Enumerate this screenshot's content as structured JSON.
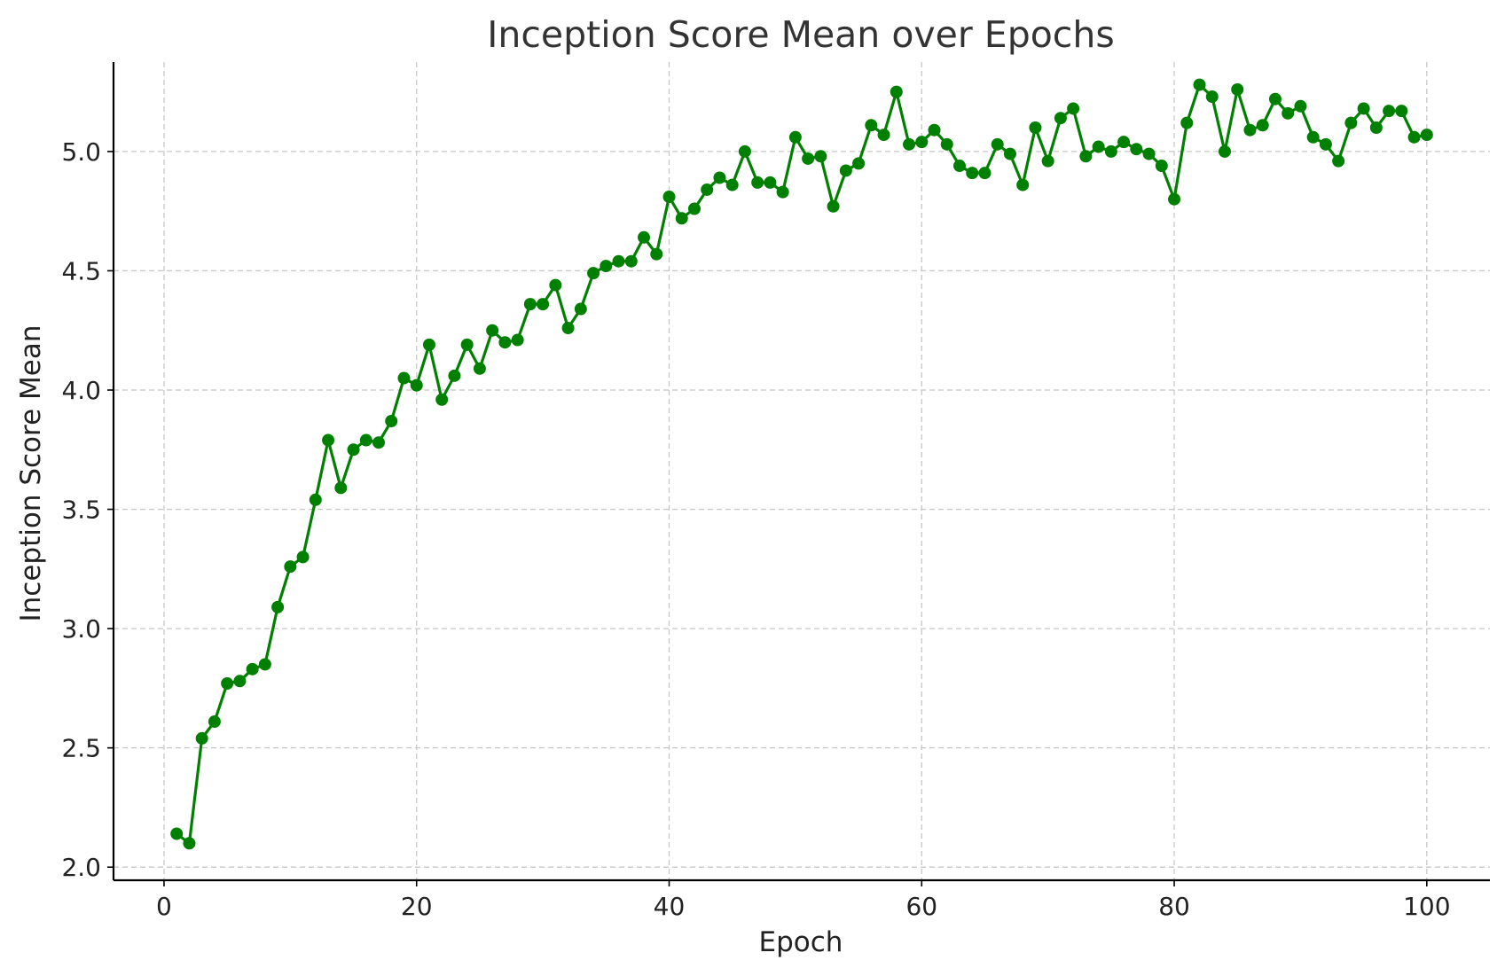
{
  "chart_data": {
    "type": "line",
    "title": "Inception Score Mean over Epochs",
    "xlabel": "Epoch",
    "ylabel": "Inception Score Mean",
    "xlim": [
      -4,
      105
    ],
    "ylim": [
      1.945,
      5.375
    ],
    "x_ticks": [
      0,
      20,
      40,
      60,
      80,
      100
    ],
    "y_ticks": [
      2.0,
      2.5,
      3.0,
      3.5,
      4.0,
      4.5,
      5.0
    ],
    "x_tick_labels": [
      "0",
      "20",
      "40",
      "60",
      "80",
      "100"
    ],
    "y_tick_labels": [
      "2.0",
      "2.5",
      "3.0",
      "3.5",
      "4.0",
      "4.5",
      "5.0"
    ],
    "grid": true,
    "series": [
      {
        "color": "#008000",
        "marker": "circle",
        "x": [
          1,
          2,
          3,
          4,
          5,
          6,
          7,
          8,
          9,
          10,
          11,
          12,
          13,
          14,
          15,
          16,
          17,
          18,
          19,
          20,
          21,
          22,
          23,
          24,
          25,
          26,
          27,
          28,
          29,
          30,
          31,
          32,
          33,
          34,
          35,
          36,
          37,
          38,
          39,
          40,
          41,
          42,
          43,
          44,
          45,
          46,
          47,
          48,
          49,
          50,
          51,
          52,
          53,
          54,
          55,
          56,
          57,
          58,
          59,
          60,
          61,
          62,
          63,
          64,
          65,
          66,
          67,
          68,
          69,
          70,
          71,
          72,
          73,
          74,
          75,
          76,
          77,
          78,
          79,
          80,
          81,
          82,
          83,
          84,
          85,
          86,
          87,
          88,
          89,
          90,
          91,
          92,
          93,
          94,
          95,
          96,
          97,
          98,
          99,
          100
        ],
        "values": [
          2.14,
          2.1,
          2.54,
          2.61,
          2.77,
          2.78,
          2.83,
          2.85,
          3.09,
          3.26,
          3.3,
          3.54,
          3.79,
          3.59,
          3.75,
          3.79,
          3.78,
          3.87,
          4.05,
          4.02,
          4.19,
          3.96,
          4.06,
          4.19,
          4.09,
          4.25,
          4.2,
          4.21,
          4.36,
          4.36,
          4.44,
          4.26,
          4.34,
          4.49,
          4.52,
          4.54,
          4.54,
          4.64,
          4.57,
          4.81,
          4.72,
          4.76,
          4.84,
          4.89,
          4.86,
          5.0,
          4.87,
          4.87,
          4.83,
          5.06,
          4.97,
          4.98,
          4.77,
          4.92,
          4.95,
          5.11,
          5.07,
          5.25,
          5.03,
          5.04,
          5.09,
          5.03,
          4.94,
          4.91,
          4.91,
          5.03,
          4.99,
          4.86,
          5.1,
          4.96,
          5.14,
          5.18,
          4.98,
          5.02,
          5.0,
          5.04,
          5.01,
          4.99,
          4.94,
          4.8,
          5.12,
          5.28,
          5.23,
          5.0,
          5.26,
          5.09,
          5.11,
          5.22,
          5.16,
          5.19,
          5.06,
          5.03,
          4.96,
          5.12,
          5.18,
          5.1,
          5.17,
          5.17,
          5.06,
          5.07
        ]
      }
    ]
  }
}
